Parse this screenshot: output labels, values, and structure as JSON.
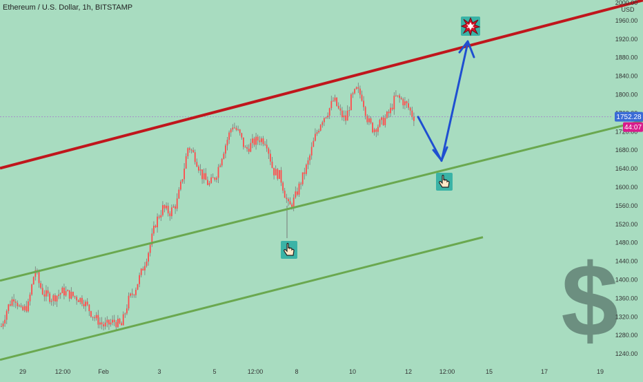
{
  "header": {
    "symbol_title": "Ethereum / U.S. Dollar, 1h, BITSTAMP"
  },
  "colors": {
    "background": "#a8dcc0",
    "candle_up": "#ff4a4a",
    "candle_down": "#ff4a4a",
    "resistance_line": "#c0161c",
    "support_line": "#6aa84f",
    "projection_arrow": "#1f4fd1",
    "price_label_bg": "#3a6bd6",
    "timer_label_bg": "#d81b8c",
    "current_price_line": "#a78fc8",
    "dollar_sign": "#6c8f80",
    "icon_tile": "#3ab3a6"
  },
  "price_axis": {
    "unit": "USD",
    "ticks": [
      "2000.00",
      "1960.00",
      "1920.00",
      "1880.00",
      "1840.00",
      "1800.00",
      "1760.00",
      "1720.00",
      "1680.00",
      "1640.00",
      "1600.00",
      "1560.00",
      "1520.00",
      "1480.00",
      "1440.00",
      "1400.00",
      "1360.00",
      "1320.00",
      "1280.00",
      "1240.00"
    ],
    "current_price_label": "1752.28",
    "timer_label": "44:07"
  },
  "time_axis": {
    "ticks": [
      "29",
      "12:00",
      "Feb",
      "3",
      "5",
      "12:00",
      "8",
      "10",
      "12",
      "12:00",
      "15",
      "17",
      "19"
    ]
  },
  "icons": {
    "explosion": "explosion-icon",
    "pointer_top": "pointing-hand-icon",
    "pointer_bottom": "pointing-hand-icon",
    "dollar": "dollar-sign-icon"
  },
  "chart_data": {
    "type": "candlestick",
    "title": "Ethereum / U.S. Dollar, 1h, BITSTAMP",
    "ylabel": "USD",
    "ylim": [
      1220,
      2010
    ],
    "x_ticks": [
      "29",
      "12:00",
      "Feb",
      "3",
      "5",
      "12:00",
      "8",
      "10",
      "12",
      "12:00",
      "15",
      "17",
      "19"
    ],
    "current_price": 1752.28,
    "price_path": [
      [
        0,
        1295
      ],
      [
        10,
        1340
      ],
      [
        20,
        1365
      ],
      [
        30,
        1330
      ],
      [
        40,
        1345
      ],
      [
        50,
        1425
      ],
      [
        55,
        1395
      ],
      [
        62,
        1370
      ],
      [
        75,
        1360
      ],
      [
        90,
        1375
      ],
      [
        105,
        1365
      ],
      [
        120,
        1355
      ],
      [
        135,
        1320
      ],
      [
        150,
        1300
      ],
      [
        165,
        1310
      ],
      [
        175,
        1300
      ],
      [
        185,
        1355
      ],
      [
        195,
        1380
      ],
      [
        205,
        1420
      ],
      [
        215,
        1465
      ],
      [
        225,
        1525
      ],
      [
        235,
        1555
      ],
      [
        245,
        1545
      ],
      [
        255,
        1565
      ],
      [
        262,
        1610
      ],
      [
        272,
        1690
      ],
      [
        282,
        1665
      ],
      [
        292,
        1625
      ],
      [
        302,
        1605
      ],
      [
        312,
        1625
      ],
      [
        322,
        1675
      ],
      [
        336,
        1735
      ],
      [
        346,
        1715
      ],
      [
        355,
        1680
      ],
      [
        365,
        1695
      ],
      [
        375,
        1705
      ],
      [
        385,
        1700
      ],
      [
        395,
        1635
      ],
      [
        405,
        1625
      ],
      [
        412,
        1585
      ],
      [
        418,
        1555
      ],
      [
        426,
        1575
      ],
      [
        436,
        1615
      ],
      [
        446,
        1655
      ],
      [
        455,
        1705
      ],
      [
        465,
        1745
      ],
      [
        475,
        1765
      ],
      [
        483,
        1790
      ],
      [
        492,
        1760
      ],
      [
        500,
        1745
      ],
      [
        508,
        1790
      ],
      [
        516,
        1810
      ],
      [
        524,
        1795
      ],
      [
        532,
        1745
      ],
      [
        540,
        1725
      ],
      [
        548,
        1735
      ],
      [
        556,
        1745
      ],
      [
        565,
        1765
      ],
      [
        572,
        1795
      ],
      [
        580,
        1790
      ],
      [
        590,
        1775
      ],
      [
        598,
        1752
      ]
    ],
    "annotations": {
      "resistance_line": [
        [
          0,
          1641
        ],
        [
          932,
          2004
        ]
      ],
      "support_line_upper": [
        [
          0,
          1398
        ],
        [
          932,
          1744
        ]
      ],
      "support_line_lower": [
        [
          0,
          1227
        ],
        [
          700,
          1492
        ]
      ],
      "projection_path": [
        [
          606,
          1752
        ],
        [
          640,
          1657
        ],
        [
          678,
          1912
        ]
      ]
    }
  }
}
